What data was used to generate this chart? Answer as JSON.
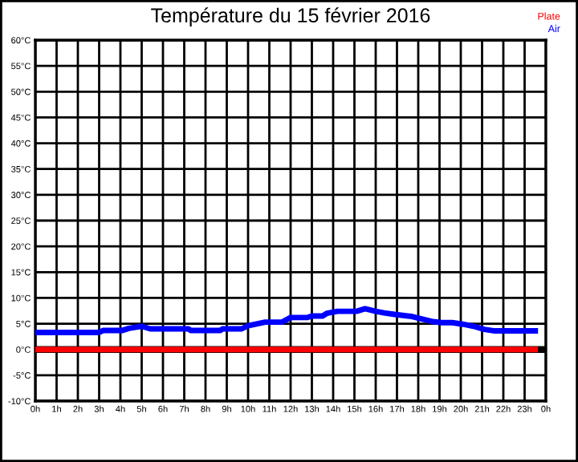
{
  "chart_data": {
    "type": "line",
    "title": "Température du 15 février 2016",
    "xlim": [
      "2016-02-15T00:00",
      "2016-02-16T00:00"
    ],
    "xticks": [
      {
        "value": "2016-02-15T00:00",
        "label": "0h"
      },
      {
        "value": "2016-02-15T01:00",
        "label": "1h"
      },
      {
        "value": "2016-02-15T02:00",
        "label": "2h"
      },
      {
        "value": "2016-02-15T03:00",
        "label": "3h"
      },
      {
        "value": "2016-02-15T04:00",
        "label": "4h"
      },
      {
        "value": "2016-02-15T05:00",
        "label": "5h"
      },
      {
        "value": "2016-02-15T06:00",
        "label": "6h"
      },
      {
        "value": "2016-02-15T07:00",
        "label": "7h"
      },
      {
        "value": "2016-02-15T08:00",
        "label": "8h"
      },
      {
        "value": "2016-02-15T09:00",
        "label": "9h"
      },
      {
        "value": "2016-02-15T10:00",
        "label": "10h"
      },
      {
        "value": "2016-02-15T11:00",
        "label": "11h"
      },
      {
        "value": "2016-02-15T12:00",
        "label": "12h"
      },
      {
        "value": "2016-02-15T13:00",
        "label": "13h"
      },
      {
        "value": "2016-02-15T14:00",
        "label": "14h"
      },
      {
        "value": "2016-02-15T15:00",
        "label": "15h"
      },
      {
        "value": "2016-02-15T16:00",
        "label": "16h"
      },
      {
        "value": "2016-02-15T17:00",
        "label": "17h"
      },
      {
        "value": "2016-02-15T18:00",
        "label": "18h"
      },
      {
        "value": "2016-02-15T19:00",
        "label": "19h"
      },
      {
        "value": "2016-02-15T20:00",
        "label": "20h"
      },
      {
        "value": "2016-02-15T21:00",
        "label": "21h"
      },
      {
        "value": "2016-02-15T22:00",
        "label": "22h"
      },
      {
        "value": "2016-02-15T23:00",
        "label": "23h"
      },
      {
        "value": "2016-02-16T00:00",
        "label": "0h"
      }
    ],
    "ylim": [
      -10,
      60
    ],
    "yticks": [
      {
        "value": -10,
        "label": "-10°C"
      },
      {
        "value": -5,
        "label": "-5°C"
      },
      {
        "value": 0,
        "label": "0°C"
      },
      {
        "value": 5,
        "label": "5°C"
      },
      {
        "value": 10,
        "label": "10°C"
      },
      {
        "value": 15,
        "label": "15°C"
      },
      {
        "value": 20,
        "label": "20°C"
      },
      {
        "value": 25,
        "label": "25°C"
      },
      {
        "value": 30,
        "label": "30°C"
      },
      {
        "value": 35,
        "label": "35°C"
      },
      {
        "value": 40,
        "label": "40°C"
      },
      {
        "value": 45,
        "label": "45°C"
      },
      {
        "value": 50,
        "label": "50°C"
      },
      {
        "value": 55,
        "label": "55°C"
      },
      {
        "value": 60,
        "label": "60°C"
      }
    ],
    "grid": true,
    "legend": "top right",
    "marker": "none",
    "line_style": "solid",
    "ref_lines": [
      {
        "axis": "y",
        "value": 0,
        "color": "#000000"
      }
    ],
    "series": [
      {
        "name": "Plate",
        "color": "#ff0000",
        "x": [
          "2016-02-15T00:00",
          "2016-02-15T23:30"
        ],
        "values": [
          0,
          0
        ]
      },
      {
        "name": "Air",
        "color": "#0000ff",
        "x": [
          "2016-02-15T00:00",
          "2016-02-15T03:00",
          "2016-02-15T03:12",
          "2016-02-15T04:06",
          "2016-02-15T04:24",
          "2016-02-15T05:00",
          "2016-02-15T05:24",
          "2016-02-15T07:12",
          "2016-02-15T07:18",
          "2016-02-15T08:42",
          "2016-02-15T08:48",
          "2016-02-15T09:42",
          "2016-02-15T10:00",
          "2016-02-15T10:48",
          "2016-02-15T11:36",
          "2016-02-15T12:00",
          "2016-02-15T12:48",
          "2016-02-15T13:00",
          "2016-02-15T13:30",
          "2016-02-15T13:42",
          "2016-02-15T14:12",
          "2016-02-15T15:06",
          "2016-02-15T15:30",
          "2016-02-15T16:00",
          "2016-02-15T16:24",
          "2016-02-15T16:54",
          "2016-02-15T17:42",
          "2016-02-15T18:12",
          "2016-02-15T18:42",
          "2016-02-15T19:06",
          "2016-02-15T19:36",
          "2016-02-15T20:06",
          "2016-02-15T20:36",
          "2016-02-15T21:06",
          "2016-02-15T21:36",
          "2016-02-15T23:30"
        ],
        "values": [
          3.3,
          3.3,
          3.7,
          3.7,
          4.1,
          4.5,
          4.0,
          4.0,
          3.7,
          3.7,
          4.0,
          4.0,
          4.6,
          5.3,
          5.3,
          6.2,
          6.2,
          6.5,
          6.5,
          7.0,
          7.4,
          7.4,
          7.9,
          7.4,
          7.1,
          6.8,
          6.4,
          5.9,
          5.4,
          5.2,
          5.2,
          4.9,
          4.5,
          3.9,
          3.6,
          3.6
        ]
      }
    ]
  }
}
